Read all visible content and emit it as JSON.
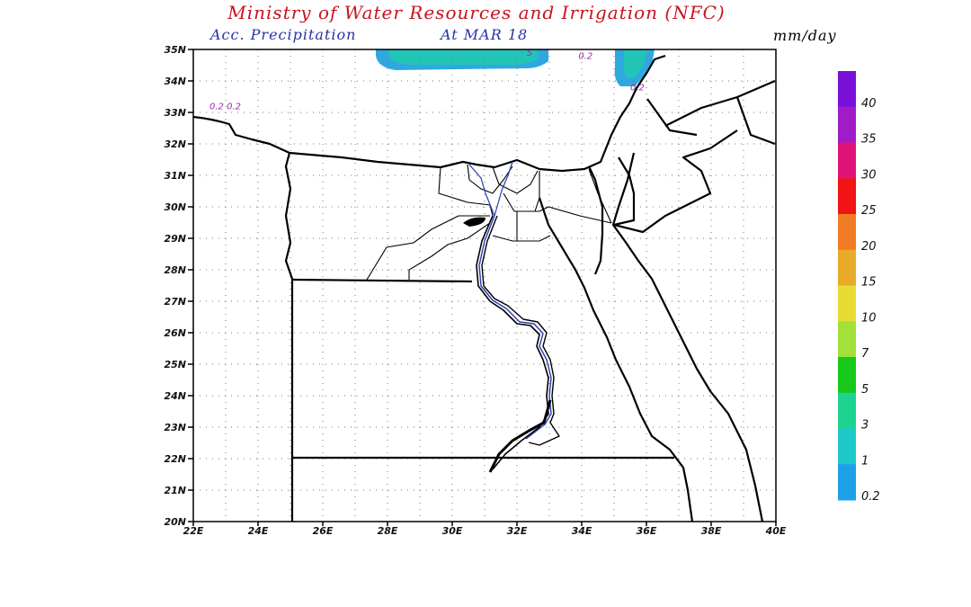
{
  "header": {
    "title": "Ministry of Water Resources and Irrigation (NFC)",
    "subtitle": "Acc. Precipitation",
    "date_label": "At MAR 18",
    "units": "mm/day"
  },
  "map": {
    "lat_labels": [
      "35N",
      "34N",
      "33N",
      "32N",
      "31N",
      "30N",
      "29N",
      "28N",
      "27N",
      "26N",
      "25N",
      "24N",
      "23N",
      "22N",
      "21N",
      "20N"
    ],
    "lon_labels": [
      "22E",
      "24E",
      "26E",
      "28E",
      "30E",
      "32E",
      "34E",
      "36E",
      "38E",
      "40E"
    ],
    "contour_labels": [
      {
        "text": "0.2 0.2",
        "lon": 22.5,
        "lat": 33.1
      },
      {
        "text": "0.2",
        "lon": 33.9,
        "lat": 34.7
      },
      {
        "text": "0.2",
        "lon": 35.5,
        "lat": 33.7
      },
      {
        "text": "5",
        "lon": 32.3,
        "lat": 34.8
      }
    ]
  },
  "legend": {
    "items": [
      {
        "label": "40",
        "color": "#7a10d8"
      },
      {
        "label": "35",
        "color": "#a01cc8"
      },
      {
        "label": "30",
        "color": "#e01478"
      },
      {
        "label": "25",
        "color": "#f01414"
      },
      {
        "label": "20",
        "color": "#f07c24"
      },
      {
        "label": "15",
        "color": "#e8aa28"
      },
      {
        "label": "10",
        "color": "#e8dc32"
      },
      {
        "label": "7",
        "color": "#a2e03a"
      },
      {
        "label": "5",
        "color": "#18c81a"
      },
      {
        "label": "3",
        "color": "#1ed290"
      },
      {
        "label": "1",
        "color": "#1ec8c8"
      },
      {
        "label": "0.2",
        "color": "#1ea0e6"
      }
    ]
  },
  "colors": {
    "title": "#c8141e",
    "subtitle": "#2633a8",
    "river": "#2a3cb4",
    "contour_label": "#9a2aa8"
  }
}
